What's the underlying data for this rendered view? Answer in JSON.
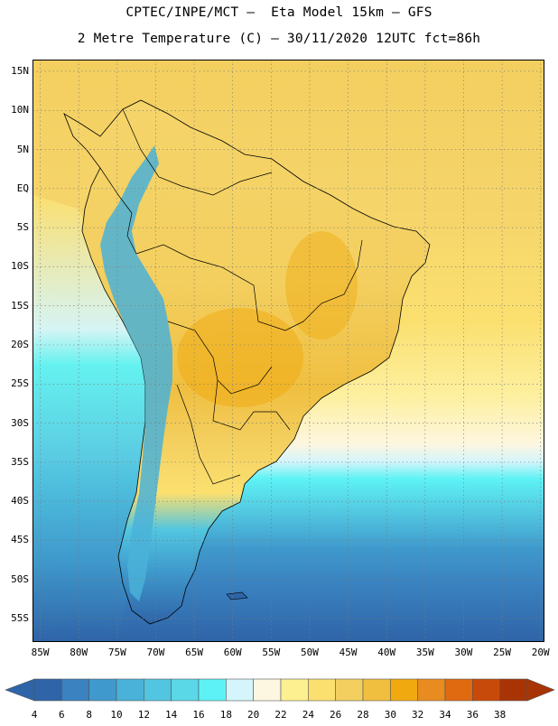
{
  "header": {
    "line1": "CPTEC/INPE/MCT –  Eta Model 15km – GFS",
    "line2": "2 Metre Temperature (C) – 30/11/2020 12UTC fct=86h"
  },
  "axes": {
    "lat_labels": [
      "15N",
      "10N",
      "5N",
      "EQ",
      "5S",
      "10S",
      "15S",
      "20S",
      "25S",
      "30S",
      "35S",
      "40S",
      "45S",
      "50S",
      "55S"
    ],
    "lat_values": [
      15,
      10,
      5,
      0,
      -5,
      -10,
      -15,
      -20,
      -25,
      -30,
      -35,
      -40,
      -45,
      -50,
      -55
    ],
    "lon_labels": [
      "85W",
      "80W",
      "75W",
      "70W",
      "65W",
      "60W",
      "55W",
      "50W",
      "45W",
      "40W",
      "35W",
      "30W",
      "25W",
      "20W"
    ],
    "lon_values": [
      -85,
      -80,
      -75,
      -70,
      -65,
      -60,
      -55,
      -50,
      -45,
      -40,
      -35,
      -30,
      -25,
      -20
    ],
    "lat_range": [
      -58,
      16.5
    ],
    "lon_range": [
      -86,
      -19.5
    ],
    "grid": "dotted"
  },
  "colorbar": {
    "labels": [
      "4",
      "6",
      "8",
      "10",
      "12",
      "14",
      "16",
      "18",
      "20",
      "22",
      "24",
      "26",
      "28",
      "30",
      "32",
      "34",
      "36",
      "38"
    ],
    "colors": [
      "#2f64a8",
      "#3a82c0",
      "#3f99cc",
      "#4ab1d8",
      "#52c6e0",
      "#5ad8e8",
      "#5df2f5",
      "#d4f5fb",
      "#fdf6e0",
      "#fdf090",
      "#fbe070",
      "#f3cf5f",
      "#f0bf40",
      "#f0aa10",
      "#e88c20",
      "#e06a10",
      "#c84a0a",
      "#a83405"
    ]
  },
  "map_colors": {
    "ocean_north": "#f3cf5f",
    "ocean_mid_pale": "#fdf6e0",
    "ocean_south_cyan": "#5df2f5",
    "ocean_south_blue": "#3a82c0",
    "ocean_deep": "#2f64a8",
    "land_warm": "#f3cf5f",
    "land_hot": "#f0bf40",
    "andes_cool": "#4ab1d8",
    "border": "#000000"
  }
}
